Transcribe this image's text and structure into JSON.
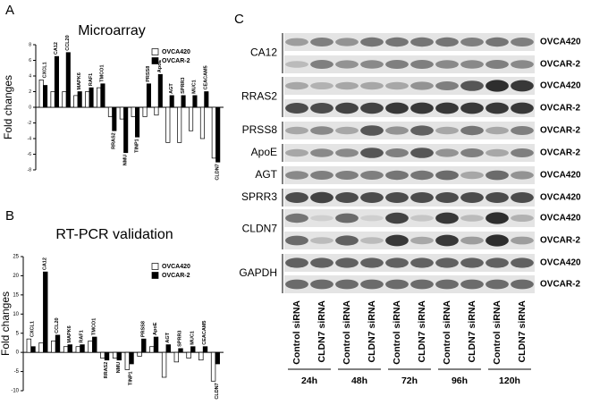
{
  "panel_labels": [
    "A",
    "B",
    "C"
  ],
  "chart_data": [
    {
      "type": "bar",
      "title": "Microarray",
      "y_label": "Fold changes",
      "categories": [
        "CXCL1",
        "CA12",
        "CCL20",
        "MAPK6",
        "RAF1",
        "TMCO1",
        "RRAS2",
        "NMU",
        "TINP1",
        "PRSS8",
        "ApoE",
        "AGT",
        "SPRR3",
        "MUC1",
        "CEACAM5",
        "CLDN7"
      ],
      "series": [
        {
          "name": "OVCA420",
          "color": "#ffffff",
          "values": [
            3.5,
            2,
            2,
            1.5,
            2,
            2.5,
            -1.2,
            -1.5,
            -1.2,
            -1.2,
            -1,
            -4.5,
            -4.5,
            -3,
            -4,
            -6.5
          ]
        },
        {
          "name": "OVCAR-2",
          "color": "#000000",
          "values": [
            2.8,
            6.5,
            7,
            2,
            2.5,
            3,
            -3,
            -5.8,
            -3.8,
            3,
            4.2,
            1.5,
            1.5,
            1.5,
            2,
            -7
          ]
        }
      ],
      "ylim": [
        -8,
        8
      ],
      "yticks": [
        -8,
        -6,
        -4,
        -2,
        0,
        2,
        4,
        6,
        8
      ]
    },
    {
      "type": "bar",
      "title": "RT-PCR validation",
      "y_label": "Fold changes",
      "categories": [
        "CXCL1",
        "CA12",
        "CCL20",
        "MAPK6",
        "RAF1",
        "TMCO1",
        "RRAS2",
        "NMU",
        "TINP1",
        "PRSS8",
        "ApoE",
        "AGT",
        "SPRR3",
        "MUC1",
        "CEACAM5",
        "CLDN7"
      ],
      "series": [
        {
          "name": "OVCA420",
          "color": "#ffffff",
          "values": [
            3.5,
            2.5,
            3,
            1.5,
            1.5,
            3,
            -1.5,
            -1.5,
            -4.5,
            -1,
            1.5,
            -6.5,
            -2.5,
            -1.5,
            -2,
            -7.5
          ]
        },
        {
          "name": "OVCAR-2",
          "color": "#000000",
          "values": [
            1.5,
            21,
            4.5,
            2,
            2,
            4,
            -2,
            -2,
            -3,
            3.5,
            4,
            2,
            1,
            1.5,
            1.5,
            -3
          ]
        }
      ],
      "ylim": [
        -10,
        25
      ],
      "yticks": [
        -10,
        -5,
        0,
        5,
        10,
        15,
        20,
        25
      ]
    }
  ],
  "blot": {
    "proteins": [
      "CA12",
      "RRAS2",
      "PRSS8",
      "ApoE",
      "AGT",
      "SPRR3",
      "CLDN7",
      "GAPDH"
    ],
    "cell_lines": [
      "OVCA420",
      "OVCAR-2",
      "OVCA420",
      "OVCAR-2",
      "OVCAR-2",
      "OVCAR-2",
      "OVCA420",
      "OVCA420",
      "OVCA420",
      "OVCAR-2",
      "OVCA420",
      "OVCAR-2"
    ],
    "lanes": [
      "Control siRNA",
      "CLDN7 siRNA",
      "Control siRNA",
      "CLDN7 siRNA",
      "Control siRNA",
      "CLDN7 siRNA",
      "Control siRNA",
      "CLDN7 siRNA",
      "Control siRNA",
      "CLDN7 siRNA"
    ],
    "timepoints": [
      "24h",
      "48h",
      "72h",
      "96h",
      "120h"
    ]
  }
}
